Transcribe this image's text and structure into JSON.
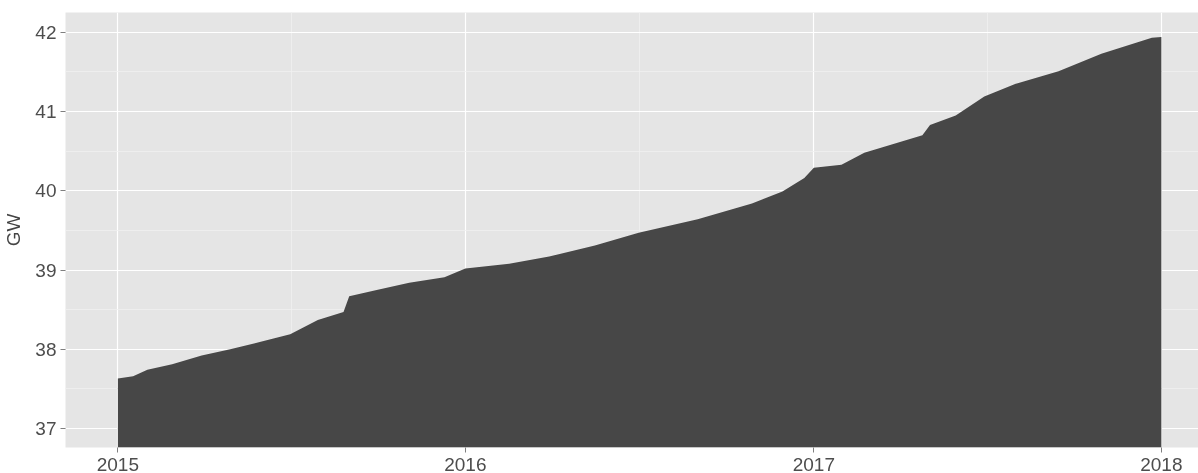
{
  "chart_data": {
    "type": "area",
    "ylabel": "GW",
    "x": [
      "2015-01-01",
      "2015-01-17",
      "2015-02-01",
      "2015-02-27",
      "2015-03-30",
      "2015-04-29",
      "2015-05-30",
      "2015-07-01",
      "2015-07-30",
      "2015-08-26",
      "2015-09-01",
      "2015-10-01",
      "2015-11-03",
      "2015-12-10",
      "2016-01-01",
      "2016-02-16",
      "2016-03-29",
      "2016-05-16",
      "2016-07-01",
      "2016-09-01",
      "2016-10-28",
      "2016-11-29",
      "2016-12-22",
      "2017-01-01",
      "2017-01-30",
      "2017-02-23",
      "2017-04-25",
      "2017-05-03",
      "2017-05-30",
      "2017-06-29",
      "2017-08-01",
      "2017-09-15",
      "2017-10-30",
      "2017-12-22",
      "2018-01-01"
    ],
    "series": [
      {
        "color": "#474747",
        "values": [
          37.63,
          37.66,
          37.74,
          37.81,
          37.92,
          38.0,
          38.09,
          38.19,
          38.37,
          38.47,
          38.67,
          38.75,
          38.84,
          38.91,
          39.02,
          39.08,
          39.17,
          39.31,
          39.47,
          39.64,
          39.84,
          39.99,
          40.16,
          40.29,
          40.33,
          40.48,
          40.7,
          40.83,
          40.95,
          41.19,
          41.35,
          41.51,
          41.73,
          41.93,
          41.94
        ]
      }
    ],
    "xlim": [
      "2014-11-07",
      "2018-02-09"
    ],
    "ylim": [
      36.76,
      42.25
    ],
    "xticks": [
      "2015",
      "2016",
      "2017",
      "2018"
    ],
    "yticks": [
      37,
      38,
      39,
      40,
      41,
      42
    ],
    "grid": true
  }
}
